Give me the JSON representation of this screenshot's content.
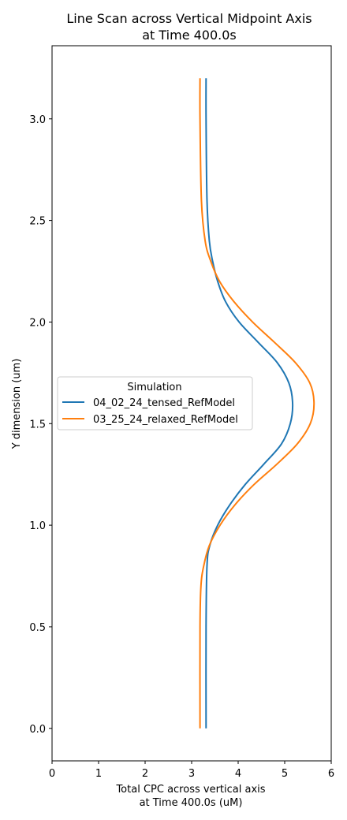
{
  "chart_data": {
    "type": "line",
    "title": [
      "Line Scan across Vertical Midpoint Axis",
      "at Time 400.0s"
    ],
    "xlabel": [
      "Total CPC across vertical axis",
      "at Time 400.0s (uM)"
    ],
    "ylabel": "Y dimension (um)",
    "xlim": [
      0,
      6
    ],
    "ylim": [
      -0.16,
      3.36
    ],
    "xticks": [
      0,
      1,
      2,
      3,
      4,
      5,
      6
    ],
    "xtick_labels": [
      "0",
      "1",
      "2",
      "3",
      "4",
      "5",
      "6"
    ],
    "yticks": [
      0.0,
      0.5,
      1.0,
      1.5,
      2.0,
      2.5,
      3.0
    ],
    "ytick_labels": [
      "0.0",
      "0.5",
      "1.0",
      "1.5",
      "2.0",
      "2.5",
      "3.0"
    ],
    "grid": false,
    "legend": {
      "title": "Simulation",
      "position": "center-left"
    },
    "series": [
      {
        "name": "04_02_24_tensed_RefModel",
        "color": "#1f77b4",
        "y": [
          0.0,
          0.5,
          0.8,
          0.9,
          1.0,
          1.1,
          1.2,
          1.3,
          1.4,
          1.5,
          1.6,
          1.7,
          1.8,
          1.9,
          2.0,
          2.1,
          2.2,
          2.3,
          2.4,
          2.6,
          3.0,
          3.2
        ],
        "x": [
          3.31,
          3.31,
          3.33,
          3.39,
          3.56,
          3.82,
          4.15,
          4.55,
          4.93,
          5.12,
          5.17,
          5.09,
          4.84,
          4.43,
          4.02,
          3.73,
          3.56,
          3.45,
          3.38,
          3.33,
          3.31,
          3.31
        ]
      },
      {
        "name": "03_25_24_relaxed_RefModel",
        "color": "#ff7f0e",
        "y": [
          0.0,
          0.5,
          0.7,
          0.8,
          0.9,
          1.0,
          1.1,
          1.2,
          1.3,
          1.4,
          1.5,
          1.6,
          1.7,
          1.8,
          1.9,
          2.0,
          2.1,
          2.2,
          2.3,
          2.4,
          2.6,
          3.0,
          3.2
        ],
        "x": [
          3.18,
          3.18,
          3.2,
          3.26,
          3.38,
          3.61,
          3.93,
          4.34,
          4.83,
          5.27,
          5.55,
          5.63,
          5.54,
          5.23,
          4.78,
          4.31,
          3.91,
          3.6,
          3.41,
          3.29,
          3.21,
          3.18,
          3.18
        ]
      }
    ]
  }
}
